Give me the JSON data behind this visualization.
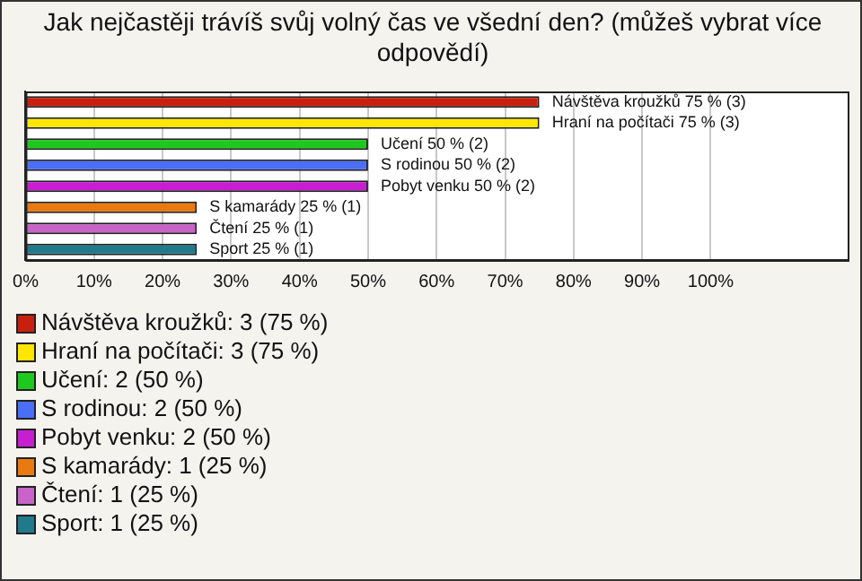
{
  "chart_data": {
    "type": "bar",
    "orientation": "horizontal",
    "title": "Jak nejčastěji trávíš svůj volný čas ve všední den? (můžeš vybrat více odpovědí)",
    "categories": [
      "Návštěva kroužků",
      "Hraní na počítači",
      "Učení",
      "S rodinou",
      "Pobyt venku",
      "S kamarády",
      "Čtení",
      "Sport"
    ],
    "values": [
      75,
      75,
      50,
      50,
      50,
      25,
      25,
      25
    ],
    "colors": [
      "#c8200e",
      "#ffe600",
      "#1ec81e",
      "#4a6ef5",
      "#c81ed2",
      "#e87a10",
      "#c864c8",
      "#207a8c"
    ],
    "value_labels": [
      "75 % (3)",
      "75 % (3)",
      "50 % (2)",
      "50 % (2)",
      "50 % (2)",
      "25 % (1)",
      "25 % (1)",
      "25 % (1)"
    ],
    "xlim": [
      0,
      120
    ],
    "xticks": [
      {
        "value": 0,
        "label": "0%"
      },
      {
        "value": 10,
        "label": "10%"
      },
      {
        "value": 20,
        "label": "20%"
      },
      {
        "value": 30,
        "label": "30%"
      },
      {
        "value": 40,
        "label": "40%"
      },
      {
        "value": 50,
        "label": "50%"
      },
      {
        "value": 60,
        "label": "60%"
      },
      {
        "value": 70,
        "label": "70%"
      },
      {
        "value": 80,
        "label": "80%"
      },
      {
        "value": 90,
        "label": "90%"
      },
      {
        "value": 100,
        "label": "100%"
      }
    ],
    "grid": "x",
    "tick_labels": "x",
    "annotations": [
      "Návštěva kroužků: 3 (75 %)",
      "Hraní na počítači: 3 (75 %)",
      "Učení: 2 (50 %)",
      "S rodinou: 2 (50 %)",
      "Pobyt venku: 2 (50 %)",
      "S kamarády: 1 (25 %)",
      "Čtení: 1 (25 %)",
      "Sport: 1 (25 %)"
    ]
  }
}
